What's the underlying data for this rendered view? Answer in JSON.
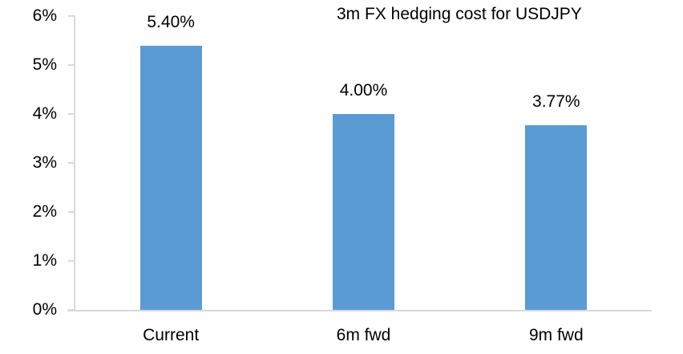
{
  "chart_data": {
    "type": "bar",
    "title": "3m FX hedging cost for USDJPY",
    "categories": [
      "Current",
      "6m fwd",
      "9m fwd"
    ],
    "values": [
      5.4,
      4.0,
      3.77
    ],
    "data_labels": [
      "5.40%",
      "4.00%",
      "3.77%"
    ],
    "xlabel": "",
    "ylabel": "",
    "ylim": [
      0,
      6
    ],
    "y_tick_labels": [
      "0%",
      "1%",
      "2%",
      "3%",
      "4%",
      "5%",
      "6%"
    ],
    "y_tick_values": [
      0,
      1,
      2,
      3,
      4,
      5,
      6
    ],
    "grid": false,
    "legend": false,
    "colors": {
      "bar_fill": "#5B9BD5",
      "axis": "#D9D9D9",
      "text": "#000000",
      "background": "#FFFFFF"
    }
  }
}
